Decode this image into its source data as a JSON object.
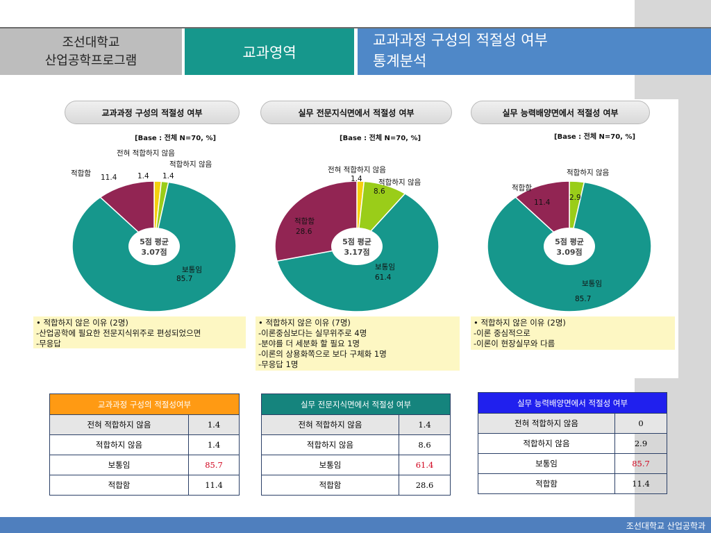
{
  "header": {
    "university_line1": "조선대학교",
    "university_line2": "산업공학프로그램",
    "area": "교과영역",
    "title_line1": "교과과정 구성의 적절성 여부",
    "title_line2": "통계분석"
  },
  "colors": {
    "teal": "#16978c",
    "maroon": "#922553",
    "green": "#9acd19",
    "yellow": "#f4d00f",
    "orange_header": "#ff9a13",
    "teal_header": "#15847d",
    "blue_header": "#2020ee"
  },
  "base_label": "[Base : 전체 N=70, %]",
  "chart_data": [
    {
      "type": "pie",
      "title": "교과과정 구성의 적절성 여부",
      "slices": [
        {
          "label": "전혀 적합하지 않음",
          "value": 1.4,
          "color": "#f4d00f"
        },
        {
          "label": "적합하지 않음",
          "value": 1.4,
          "color": "#9acd19"
        },
        {
          "label": "보통임",
          "value": 85.7,
          "color": "#16978c"
        },
        {
          "label": "적합함",
          "value": 11.4,
          "color": "#922553"
        }
      ],
      "center": {
        "line1": "5점 평균",
        "line2": "3.07점"
      },
      "notes": [
        "• 적합하지 않은 이유 (2명)",
        "-산업공학에 필요한 전문지식위주로 편성되었으면",
        "-무응답"
      ]
    },
    {
      "type": "pie",
      "title": "실무 전문지식면에서 적절성 여부",
      "slices": [
        {
          "label": "전혀 적합하지 않음",
          "value": 1.4,
          "color": "#f4d00f"
        },
        {
          "label": "적합하지 않음",
          "value": 8.6,
          "color": "#9acd19"
        },
        {
          "label": "보통임",
          "value": 61.4,
          "color": "#16978c"
        },
        {
          "label": "적합함",
          "value": 28.6,
          "color": "#922553"
        }
      ],
      "center": {
        "line1": "5점 평균",
        "line2": "3.17점"
      },
      "notes": [
        "• 적합하지 않은 이유 (7명)",
        "-이론중심보다는 실무위주로 4명",
        "-분야를 더 세분화 할 필요 1명",
        "-이론의 상용화쪽으로 보다 구체화 1명",
        "-무응답 1명"
      ]
    },
    {
      "type": "pie",
      "title": "실무 능력배양면에서 적절성 여부",
      "slices": [
        {
          "label": "적합하지 않음",
          "value": 2.9,
          "color": "#9acd19"
        },
        {
          "label": "보통임",
          "value": 85.7,
          "color": "#16978c"
        },
        {
          "label": "적합함",
          "value": 11.4,
          "color": "#922553"
        }
      ],
      "center": {
        "line1": "5점 평균",
        "line2": "3.09점"
      },
      "notes": [
        "• 적합하지 않은 이유 (2명)",
        "-이론 중심적으로",
        "-이론이 현장실무와 다름"
      ]
    }
  ],
  "tables": [
    {
      "title": "교과과정 구성의 적절성여부",
      "rows": [
        {
          "label": "전혀 적합하지 않음",
          "value": "1.4"
        },
        {
          "label": "적합하지 않음",
          "value": "1.4"
        },
        {
          "label": "보통임",
          "value": "85.7"
        },
        {
          "label": "적합함",
          "value": "11.4"
        }
      ]
    },
    {
      "title": "실무 전문지식면에서 적절성 여부",
      "rows": [
        {
          "label": "전혀 적합하지 않음",
          "value": "1.4"
        },
        {
          "label": "적합하지 않음",
          "value": "8.6"
        },
        {
          "label": "보통임",
          "value": "61.4"
        },
        {
          "label": "적합함",
          "value": "28.6"
        }
      ]
    },
    {
      "title": "실무 능력배양면에서 적절성 여부",
      "rows": [
        {
          "label": "전혀 적합하지 않음",
          "value": "0"
        },
        {
          "label": "적합하지 않음",
          "value": "2.9"
        },
        {
          "label": "보통임",
          "value": "85.7"
        },
        {
          "label": "적합함",
          "value": "11.4"
        }
      ]
    }
  ],
  "footer": "조선대학교 산업공학과"
}
